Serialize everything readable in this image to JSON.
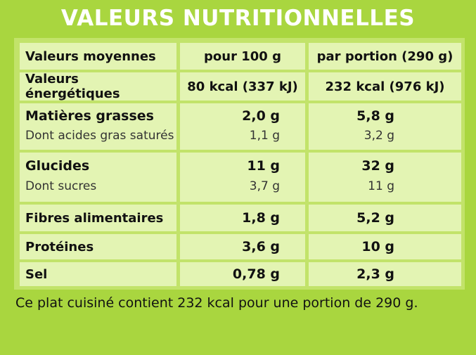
{
  "title": "VALEURS NUTRITIONNELLES",
  "header": {
    "label": "Valeurs moyennes",
    "col1": "pour 100 g",
    "col2": "par portion (290 g)"
  },
  "energy": {
    "label": "Valeurs énergétiques",
    "col1": "80 kcal (337 kJ)",
    "col2": "232 kcal (976 kJ)"
  },
  "fat": {
    "label": "Matières grasses",
    "col1": "2,0 g",
    "col2": "5,8 g",
    "sub_label": "Dont acides gras saturés",
    "sub_col1": "1,1 g",
    "sub_col2": "3,2 g"
  },
  "carbs": {
    "label": "Glucides",
    "col1": "11 g",
    "col2": "32 g",
    "sub_label": "Dont sucres",
    "sub_col1": "3,7 g",
    "sub_col2": "11 g"
  },
  "fibre": {
    "label": "Fibres alimentaires",
    "col1": "1,8 g",
    "col2": "5,2 g"
  },
  "protein": {
    "label": "Protéines",
    "col1": "3,6 g",
    "col2": "10 g"
  },
  "salt": {
    "label": "Sel",
    "col1": "0,78 g",
    "col2": "2,3 g"
  },
  "footer": "Ce plat cuisiné contient 232 kcal pour une portion de 290 g.",
  "colors": {
    "background": "#a9d63f",
    "cell": "#e3f4b3",
    "border": "#c2e36a",
    "title": "#ffffff"
  }
}
